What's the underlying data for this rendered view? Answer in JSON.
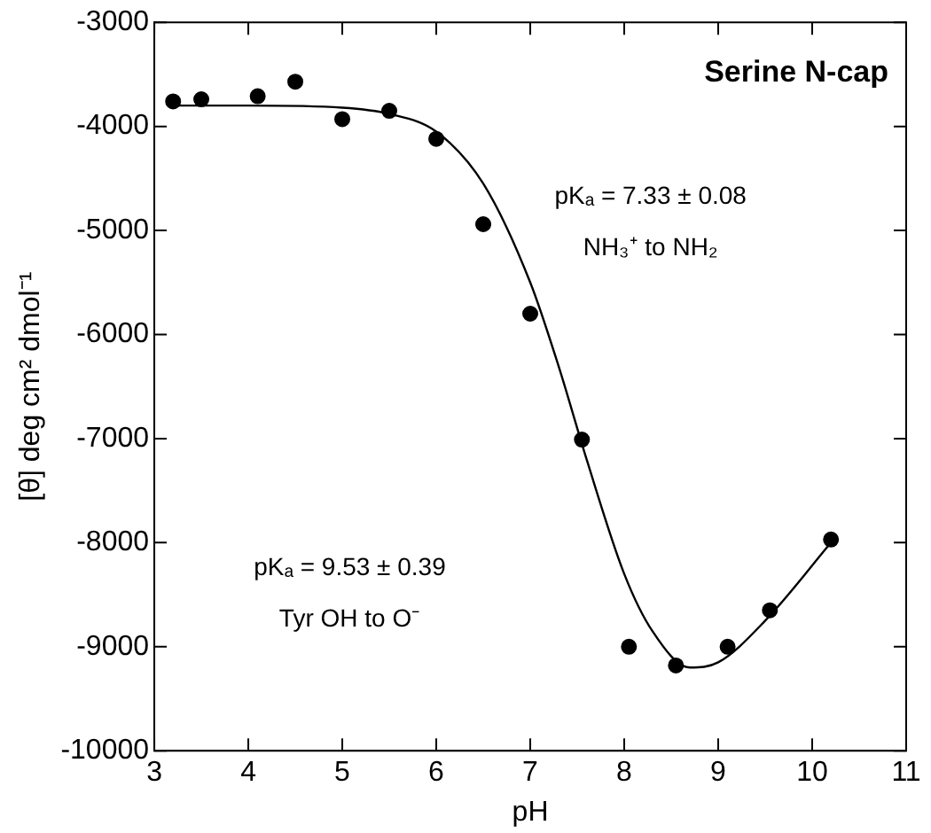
{
  "chart_data": {
    "type": "scatter",
    "title": "Serine N-cap",
    "xlabel": "pH",
    "ylabel": "[θ] deg cm² dmol⁻¹",
    "annotations": [
      "pKₐ = 7.33 ± 0.08",
      "NH₃⁺ to NH₂",
      "pKₐ = 9.53 ± 0.39",
      "Tyr OH to O⁻"
    ],
    "xlim": [
      3,
      11
    ],
    "xticks": [
      3,
      4,
      5,
      6,
      7,
      8,
      9,
      10,
      11
    ],
    "ylim": [
      -10000,
      -3000
    ],
    "yticks": [
      -10000,
      -9000,
      -8000,
      -7000,
      -6000,
      -5000,
      -4000,
      -3000
    ],
    "grid": false,
    "legend": false,
    "marker": "circle",
    "series": [
      {
        "type": "scatter",
        "color": "#000000",
        "x": [
          3.2,
          3.5,
          4.1,
          4.5,
          5.0,
          5.5,
          6.0,
          6.5,
          7.0,
          7.55,
          8.05,
          8.55,
          9.1,
          9.55,
          10.2
        ],
        "values": [
          -3760,
          -3740,
          -3710,
          -3570,
          -3930,
          -3850,
          -4120,
          -4940,
          -5800,
          -7010,
          -9000,
          -9180,
          -9000,
          -8650,
          -7970
        ]
      },
      {
        "type": "line",
        "color": "#000000",
        "line_style": "solid",
        "marker": "none",
        "x": [
          3.2,
          4,
          5,
          5.5,
          6,
          6.5,
          7,
          7.3,
          7.6,
          8,
          8.3,
          8.7,
          9,
          9.5,
          10.2
        ],
        "values": [
          -3800,
          -3800,
          -3820,
          -3880,
          -4050,
          -4550,
          -5500,
          -6300,
          -7200,
          -8300,
          -8850,
          -9200,
          -9150,
          -8750,
          -8000
        ]
      }
    ]
  }
}
